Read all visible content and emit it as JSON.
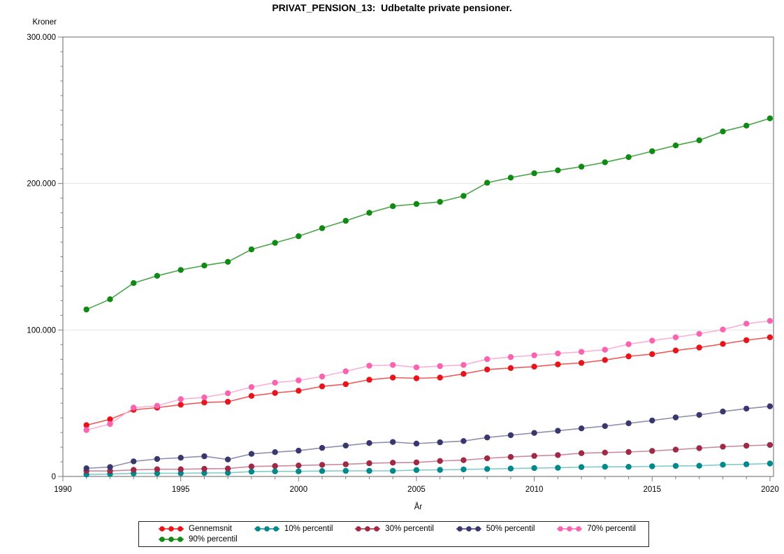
{
  "page": {
    "background": "#ffffff",
    "axis_color": "#7f7f7f",
    "grid_color": "#e4e4e4",
    "legend_border_color": "#222222"
  },
  "chart_data": {
    "type": "line",
    "title": "PRIVAT_PENSION_13:  Udbetalte private pensioner.",
    "ylabel": "Kroner",
    "xlabel": "År",
    "ylim": [
      0,
      300000
    ],
    "xlim": [
      1990,
      2020.15
    ],
    "grid": "horizontal major gridlines at 100.000 and 200.000, boxed frame",
    "legend_position": "bottom, boxed, two rows",
    "y_major_ticks": [
      0,
      100000,
      200000,
      300000
    ],
    "y_tick_labels": [
      "0",
      "100.000",
      "200.000",
      "300.000"
    ],
    "y_minor_step": 10000,
    "x_major_ticks": [
      1990,
      1995,
      2000,
      2005,
      2010,
      2015,
      2020
    ],
    "x_tick_labels": [
      "1990",
      "1995",
      "2000",
      "2005",
      "2010",
      "2015",
      "2020"
    ],
    "x_minor_step": 1,
    "x": [
      1991,
      1992,
      1993,
      1994,
      1995,
      1996,
      1997,
      1998,
      1999,
      2000,
      2001,
      2002,
      2003,
      2004,
      2005,
      2006,
      2007,
      2008,
      2009,
      2010,
      2011,
      2012,
      2013,
      2014,
      2015,
      2016,
      2017,
      2018,
      2019,
      2020
    ],
    "series": [
      {
        "name": "Gennemsnit",
        "marker_color": "#e8141c",
        "line_color": "#ee5a5a",
        "values": [
          35000,
          39000,
          45500,
          47000,
          49000,
          50500,
          51000,
          55000,
          57000,
          58500,
          61500,
          63000,
          66000,
          67500,
          67000,
          67500,
          70000,
          73000,
          74000,
          75000,
          76500,
          77500,
          79500,
          82000,
          83500,
          86000,
          88000,
          90500,
          93000,
          95000
        ]
      },
      {
        "name": "10% percentil",
        "marker_color": "#00898b",
        "line_color": "#82cbca",
        "values": [
          1400,
          1600,
          2100,
          2200,
          2200,
          2400,
          2500,
          3300,
          3500,
          3500,
          3700,
          3800,
          3800,
          3800,
          4400,
          4500,
          4800,
          5100,
          5400,
          5700,
          5900,
          6400,
          6600,
          6600,
          6900,
          7200,
          7300,
          8000,
          8300,
          8800
        ]
      },
      {
        "name": "30% percentil",
        "marker_color": "#a02945",
        "line_color": "#c98ba0",
        "values": [
          3700,
          3700,
          4500,
          4900,
          4900,
          5200,
          5400,
          6800,
          7100,
          7500,
          7900,
          8300,
          9000,
          9400,
          9600,
          10600,
          11100,
          12400,
          13300,
          14000,
          14600,
          15900,
          16300,
          16700,
          17400,
          18300,
          19300,
          20300,
          21000,
          21500
        ]
      },
      {
        "name": "50% percentil",
        "marker_color": "#38386f",
        "line_color": "#8f8fb4",
        "values": [
          5600,
          6400,
          10300,
          11900,
          12800,
          13800,
          11600,
          15400,
          16600,
          17600,
          19500,
          21100,
          22800,
          23500,
          22400,
          23300,
          24200,
          26600,
          28200,
          29700,
          31200,
          32800,
          34400,
          36300,
          38200,
          40300,
          42000,
          44300,
          46300,
          47900
        ]
      },
      {
        "name": "70% percentil",
        "marker_color": "#f963b0",
        "line_color": "#fbb1d6",
        "values": [
          31700,
          35800,
          47000,
          48200,
          52800,
          54000,
          56800,
          61000,
          64000,
          65600,
          68200,
          71800,
          75600,
          76100,
          74500,
          75300,
          76100,
          80100,
          81500,
          82700,
          84000,
          85100,
          86500,
          90300,
          92700,
          95000,
          97400,
          100300,
          104300,
          106200
        ]
      },
      {
        "name": "90% percentil",
        "marker_color": "#0f8a12",
        "line_color": "#4aa64a",
        "values": [
          114000,
          121000,
          132000,
          137000,
          141000,
          144000,
          146500,
          155000,
          159500,
          164000,
          169500,
          174500,
          180000,
          184500,
          186000,
          187500,
          191500,
          200500,
          204000,
          207000,
          209000,
          211500,
          214500,
          218000,
          222000,
          226000,
          229500,
          235500,
          239500,
          244500
        ]
      }
    ],
    "legend_rows": [
      [
        0,
        1,
        2,
        3,
        4
      ],
      [
        5
      ]
    ]
  }
}
